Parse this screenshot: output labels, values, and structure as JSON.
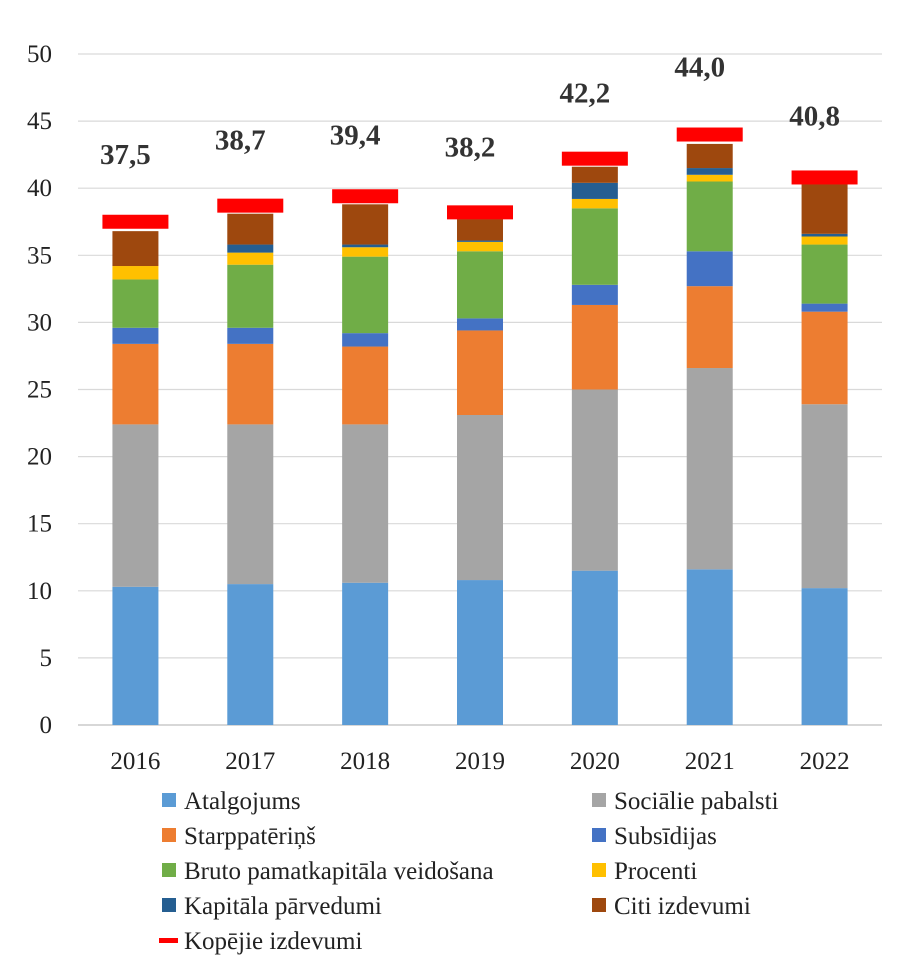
{
  "chart_data": {
    "type": "bar",
    "stacked": true,
    "categories": [
      "2016",
      "2017",
      "2018",
      "2019",
      "2020",
      "2021",
      "2022"
    ],
    "ylim": [
      0,
      50
    ],
    "yticks": [
      "0",
      "5",
      "10",
      "15",
      "20",
      "25",
      "30",
      "35",
      "40",
      "45",
      "50"
    ],
    "grid": true,
    "legend_position": "bottom",
    "series": [
      {
        "name": "Atalgojums",
        "color": "#5B9BD5",
        "values": [
          10.3,
          10.5,
          10.6,
          10.8,
          11.5,
          11.6,
          10.2
        ]
      },
      {
        "name": "Sociālie pabalsti",
        "color": "#A5A5A5",
        "values": [
          12.1,
          11.9,
          11.8,
          12.3,
          13.5,
          15.0,
          13.7
        ]
      },
      {
        "name": "Starppatēriņš",
        "color": "#ED7D31",
        "values": [
          6.0,
          6.0,
          5.8,
          6.3,
          6.3,
          6.1,
          6.9
        ]
      },
      {
        "name": "Subsīdijas",
        "color": "#4472C4",
        "values": [
          1.2,
          1.2,
          1.0,
          0.9,
          1.5,
          2.6,
          0.6
        ]
      },
      {
        "name": "Bruto pamatkapitāla veidošana",
        "color": "#70AD47",
        "values": [
          3.6,
          4.7,
          5.7,
          5.0,
          5.7,
          5.2,
          4.4
        ]
      },
      {
        "name": "Procenti",
        "color": "#FFC000",
        "values": [
          1.0,
          0.9,
          0.7,
          0.7,
          0.7,
          0.5,
          0.6
        ]
      },
      {
        "name": "Kapitāla pārvedumi",
        "color": "#255E91",
        "values": [
          0.0,
          0.6,
          0.2,
          0.1,
          1.2,
          0.5,
          0.2
        ]
      },
      {
        "name": "Citi izdevumi",
        "color": "#9E480E",
        "values": [
          2.6,
          2.3,
          3.0,
          1.6,
          1.2,
          1.8,
          3.7
        ]
      }
    ],
    "totals": {
      "name": "Kopējie izdevumi",
      "color": "#FF0000",
      "values": [
        37.5,
        38.7,
        39.4,
        38.2,
        42.2,
        44.0,
        40.8
      ],
      "labels": [
        "37,5",
        "38,7",
        "39,4",
        "38,2",
        "42,2",
        "44,0",
        "40,8"
      ]
    },
    "legend": [
      {
        "name": "Atalgojums",
        "marker": "box",
        "color": "#5B9BD5"
      },
      {
        "name": "Sociālie pabalsti",
        "marker": "box",
        "color": "#A5A5A5"
      },
      {
        "name": "Starppatēriņš",
        "marker": "box",
        "color": "#ED7D31"
      },
      {
        "name": "Subsīdijas",
        "marker": "box",
        "color": "#4472C4"
      },
      {
        "name": "Bruto pamatkapitāla veidošana",
        "marker": "box",
        "color": "#70AD47"
      },
      {
        "name": "Procenti",
        "marker": "box",
        "color": "#FFC000"
      },
      {
        "name": "Kapitāla pārvedumi",
        "marker": "box",
        "color": "#255E91"
      },
      {
        "name": "Citi izdevumi",
        "marker": "box",
        "color": "#9E480E"
      },
      {
        "name": "Kopējie izdevumi",
        "marker": "line",
        "color": "#FF0000"
      }
    ]
  }
}
